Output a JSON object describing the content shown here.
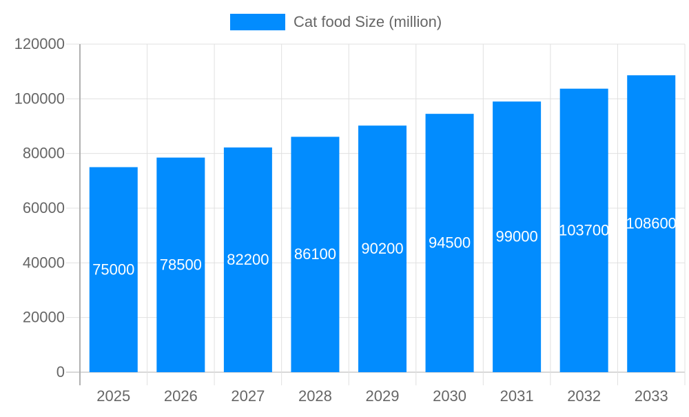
{
  "chart_data": {
    "type": "bar",
    "categories": [
      "2025",
      "2026",
      "2027",
      "2028",
      "2029",
      "2030",
      "2031",
      "2032",
      "2033"
    ],
    "series": [
      {
        "name": "Cat food Size (million)",
        "values": [
          75000,
          78500,
          82200,
          86100,
          90200,
          94500,
          99000,
          103700,
          108600
        ],
        "color": "#028cfe"
      }
    ],
    "ylim": [
      0,
      120000
    ],
    "yticks": [
      "0",
      "20000",
      "40000",
      "60000",
      "80000",
      "100000",
      "120000"
    ],
    "grid": true,
    "legend": "top-center",
    "data_labels": true
  }
}
